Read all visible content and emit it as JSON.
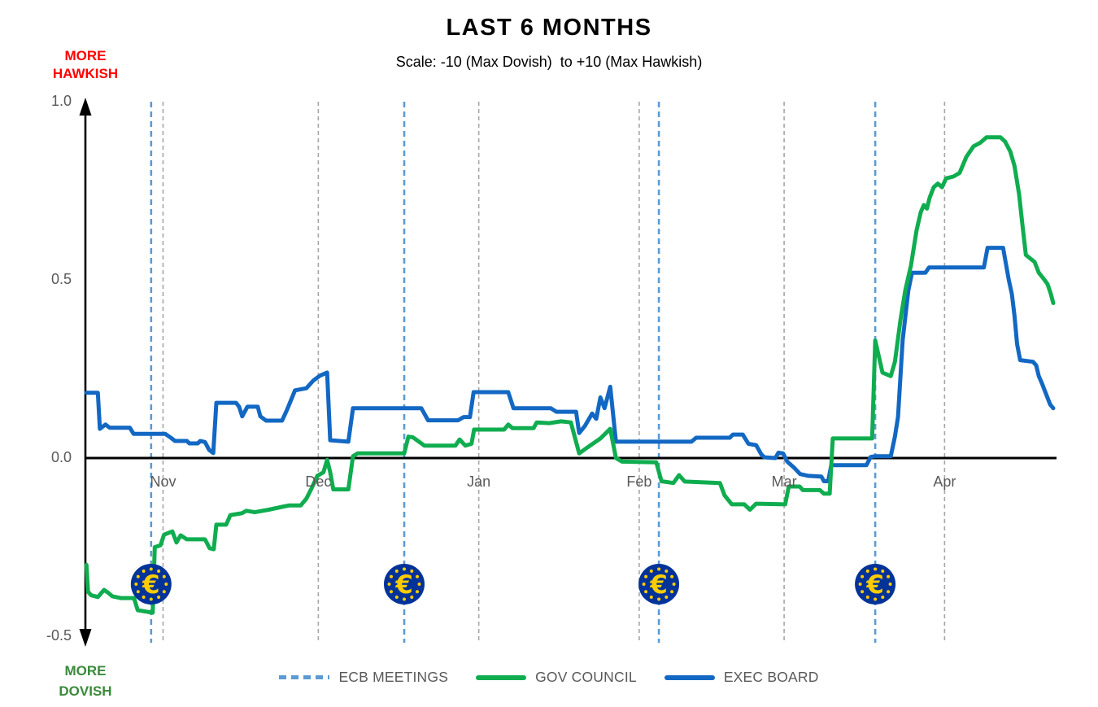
{
  "title": "LAST 6 MONTHS",
  "subtitle": "Scale: -10 (Max Dovish)  to +10 (Max Hawkish)",
  "axis_annotations": {
    "hawkish": [
      "MORE",
      "HAWKISH"
    ],
    "dovish": [
      "MORE",
      "DOVISH"
    ]
  },
  "colors": {
    "gov_council": "#0FAD4F",
    "exec_board": "#1268C3",
    "ecb_meetings": "#5B9BD5",
    "hawkish_text": "#FF0000",
    "dovish_text": "#3A8A3A",
    "zero_line": "#000000",
    "grid": "#A6A6A6",
    "tick_text": "#595959",
    "euro_coin_bg": "#003399",
    "euro_coin_fg": "#FFCC00"
  },
  "legend": [
    {
      "label": "ECB MEETINGS",
      "style": "dashed",
      "color_key": "ecb_meetings"
    },
    {
      "label": "GOV COUNCIL",
      "style": "solid",
      "color_key": "gov_council"
    },
    {
      "label": "EXEC BOARD",
      "style": "solid",
      "color_key": "exec_board"
    }
  ],
  "chart_data": {
    "type": "line",
    "title": "LAST 6 MONTHS",
    "x_unit": "days (day 0 = chart start, mid-October)",
    "x_range_days": 187,
    "ylim": [
      -0.5,
      1.0
    ],
    "grid": "vertical-dashed-at-month-starts",
    "legend_position": "bottom",
    "y_ticks": [
      {
        "label": "1.0",
        "value": 1.0
      },
      {
        "label": "0.5",
        "value": 0.5
      },
      {
        "label": "0.0",
        "value": 0.0
      },
      {
        "label": "-0.5",
        "value": -0.5
      }
    ],
    "months": [
      {
        "label": "Nov",
        "day": 15
      },
      {
        "label": "Dec",
        "day": 45
      },
      {
        "label": "Jan",
        "day": 76
      },
      {
        "label": "Feb",
        "day": 107
      },
      {
        "label": "Mar",
        "day": 135
      },
      {
        "label": "Apr",
        "day": 166
      }
    ],
    "ecb_meeting_days": [
      12.7,
      61.6,
      110.8,
      152.6
    ],
    "series": [
      {
        "name": "EXEC BOARD",
        "color_key": "exec_board",
        "points": [
          [
            0.2,
            0.183
          ],
          [
            2.4,
            0.183
          ],
          [
            2.8,
            0.082
          ],
          [
            3.9,
            0.094
          ],
          [
            4.7,
            0.085
          ],
          [
            8.6,
            0.085
          ],
          [
            9.3,
            0.068
          ],
          [
            15.4,
            0.068
          ],
          [
            16.5,
            0.057
          ],
          [
            17.3,
            0.048
          ],
          [
            19.6,
            0.048
          ],
          [
            20.1,
            0.041
          ],
          [
            21.7,
            0.041
          ],
          [
            22.2,
            0.048
          ],
          [
            23.1,
            0.045
          ],
          [
            23.9,
            0.023
          ],
          [
            24.7,
            0.014
          ],
          [
            25.3,
            0.155
          ],
          [
            29.1,
            0.155
          ],
          [
            29.7,
            0.144
          ],
          [
            30.3,
            0.117
          ],
          [
            31.3,
            0.144
          ],
          [
            33.3,
            0.144
          ],
          [
            33.8,
            0.117
          ],
          [
            34.9,
            0.105
          ],
          [
            38.0,
            0.105
          ],
          [
            39.0,
            0.137
          ],
          [
            40.5,
            0.19
          ],
          [
            42.7,
            0.196
          ],
          [
            44.0,
            0.217
          ],
          [
            45.3,
            0.231
          ],
          [
            46.7,
            0.24
          ],
          [
            47.3,
            0.05
          ],
          [
            50.8,
            0.046
          ],
          [
            51.7,
            0.14
          ],
          [
            64.9,
            0.14
          ],
          [
            66.2,
            0.106
          ],
          [
            72.0,
            0.106
          ],
          [
            73.1,
            0.115
          ],
          [
            74.3,
            0.115
          ],
          [
            75.0,
            0.185
          ],
          [
            81.7,
            0.185
          ],
          [
            82.7,
            0.14
          ],
          [
            89.9,
            0.14
          ],
          [
            91.0,
            0.13
          ],
          [
            94.8,
            0.13
          ],
          [
            95.4,
            0.07
          ],
          [
            96.5,
            0.09
          ],
          [
            97.9,
            0.125
          ],
          [
            98.7,
            0.11
          ],
          [
            99.5,
            0.17
          ],
          [
            100.3,
            0.14
          ],
          [
            101.4,
            0.2
          ],
          [
            102.5,
            0.046
          ],
          [
            117.1,
            0.046
          ],
          [
            118.0,
            0.057
          ],
          [
            124.5,
            0.057
          ],
          [
            125.1,
            0.066
          ],
          [
            127.0,
            0.066
          ],
          [
            128.1,
            0.04
          ],
          [
            129.6,
            0.036
          ],
          [
            130.6,
            0.01
          ],
          [
            131.2,
            0.002
          ],
          [
            133.3,
            0.0
          ],
          [
            133.9,
            0.015
          ],
          [
            134.8,
            0.013
          ],
          [
            135.6,
            -0.01
          ],
          [
            137.0,
            -0.028
          ],
          [
            138.1,
            -0.045
          ],
          [
            139.7,
            -0.05
          ],
          [
            142.2,
            -0.052
          ],
          [
            142.7,
            -0.065
          ],
          [
            143.5,
            -0.065
          ],
          [
            144.1,
            -0.02
          ],
          [
            150.9,
            -0.02
          ],
          [
            151.7,
            0.003
          ],
          [
            152.5,
            0.005
          ],
          [
            155.6,
            0.005
          ],
          [
            156.4,
            0.06
          ],
          [
            157.0,
            0.115
          ],
          [
            157.9,
            0.33
          ],
          [
            159.0,
            0.47
          ],
          [
            159.7,
            0.52
          ],
          [
            162.3,
            0.52
          ],
          [
            163.0,
            0.535
          ],
          [
            173.6,
            0.535
          ],
          [
            174.3,
            0.59
          ],
          [
            177.3,
            0.59
          ],
          [
            178.4,
            0.5
          ],
          [
            179.0,
            0.46
          ],
          [
            179.5,
            0.4
          ],
          [
            180.0,
            0.32
          ],
          [
            180.6,
            0.275
          ],
          [
            183.1,
            0.27
          ],
          [
            183.7,
            0.26
          ],
          [
            184.2,
            0.23
          ],
          [
            184.8,
            0.21
          ],
          [
            185.6,
            0.18
          ],
          [
            186.4,
            0.15
          ],
          [
            187.0,
            0.14
          ]
        ]
      },
      {
        "name": "GOV COUNCIL",
        "color_key": "gov_council",
        "points": [
          [
            0.2,
            -0.3
          ],
          [
            0.5,
            -0.375
          ],
          [
            1.1,
            -0.385
          ],
          [
            2.4,
            -0.39
          ],
          [
            3.6,
            -0.37
          ],
          [
            4.4,
            -0.378
          ],
          [
            5.2,
            -0.388
          ],
          [
            6.8,
            -0.393
          ],
          [
            9.4,
            -0.393
          ],
          [
            10.1,
            -0.427
          ],
          [
            11.8,
            -0.431
          ],
          [
            13.0,
            -0.434
          ],
          [
            13.4,
            -0.25
          ],
          [
            14.5,
            -0.245
          ],
          [
            15.2,
            -0.215
          ],
          [
            16.8,
            -0.206
          ],
          [
            17.6,
            -0.237
          ],
          [
            18.4,
            -0.217
          ],
          [
            19.6,
            -0.228
          ],
          [
            23.1,
            -0.228
          ],
          [
            24.0,
            -0.253
          ],
          [
            24.8,
            -0.256
          ],
          [
            25.3,
            -0.187
          ],
          [
            27.2,
            -0.187
          ],
          [
            28.0,
            -0.16
          ],
          [
            30.2,
            -0.155
          ],
          [
            31.1,
            -0.148
          ],
          [
            32.7,
            -0.152
          ],
          [
            35.4,
            -0.145
          ],
          [
            38.0,
            -0.137
          ],
          [
            39.3,
            -0.133
          ],
          [
            41.6,
            -0.133
          ],
          [
            42.7,
            -0.114
          ],
          [
            43.7,
            -0.085
          ],
          [
            44.8,
            -0.05
          ],
          [
            46.0,
            -0.04
          ],
          [
            46.7,
            -0.005
          ],
          [
            47.3,
            -0.04
          ],
          [
            47.9,
            -0.088
          ],
          [
            50.8,
            -0.088
          ],
          [
            51.7,
            0.005
          ],
          [
            52.6,
            0.013
          ],
          [
            61.6,
            0.013
          ],
          [
            62.4,
            0.06
          ],
          [
            63.3,
            0.058
          ],
          [
            65.5,
            0.035
          ],
          [
            71.5,
            0.035
          ],
          [
            72.3,
            0.052
          ],
          [
            73.4,
            0.035
          ],
          [
            74.6,
            0.04
          ],
          [
            75.1,
            0.08
          ],
          [
            80.9,
            0.08
          ],
          [
            81.7,
            0.094
          ],
          [
            82.5,
            0.084
          ],
          [
            86.6,
            0.084
          ],
          [
            87.2,
            0.1
          ],
          [
            89.6,
            0.098
          ],
          [
            91.9,
            0.103
          ],
          [
            93.8,
            0.1
          ],
          [
            95.4,
            0.013
          ],
          [
            97.0,
            0.03
          ],
          [
            99.5,
            0.055
          ],
          [
            101.4,
            0.082
          ],
          [
            102.5,
            0.0
          ],
          [
            103.7,
            -0.01
          ],
          [
            110.3,
            -0.012
          ],
          [
            111.3,
            -0.065
          ],
          [
            113.6,
            -0.07
          ],
          [
            114.7,
            -0.048
          ],
          [
            115.8,
            -0.066
          ],
          [
            122.6,
            -0.07
          ],
          [
            123.5,
            -0.105
          ],
          [
            124.9,
            -0.13
          ],
          [
            127.3,
            -0.13
          ],
          [
            128.4,
            -0.145
          ],
          [
            129.6,
            -0.128
          ],
          [
            135.2,
            -0.13
          ],
          [
            135.9,
            -0.08
          ],
          [
            138.0,
            -0.08
          ],
          [
            138.6,
            -0.09
          ],
          [
            141.9,
            -0.09
          ],
          [
            142.7,
            -0.1
          ],
          [
            143.8,
            -0.1
          ],
          [
            144.4,
            0.055
          ],
          [
            152.0,
            0.055
          ],
          [
            152.6,
            0.33
          ],
          [
            154.0,
            0.24
          ],
          [
            155.6,
            0.23
          ],
          [
            156.4,
            0.27
          ],
          [
            157.5,
            0.39
          ],
          [
            158.4,
            0.47
          ],
          [
            159.5,
            0.54
          ],
          [
            160.6,
            0.64
          ],
          [
            161.4,
            0.69
          ],
          [
            162.0,
            0.71
          ],
          [
            162.6,
            0.7
          ],
          [
            163.1,
            0.73
          ],
          [
            163.9,
            0.76
          ],
          [
            164.7,
            0.77
          ],
          [
            165.5,
            0.76
          ],
          [
            166.3,
            0.785
          ],
          [
            167.7,
            0.79
          ],
          [
            168.9,
            0.8
          ],
          [
            170.2,
            0.845
          ],
          [
            171.6,
            0.875
          ],
          [
            172.9,
            0.885
          ],
          [
            174.1,
            0.9
          ],
          [
            176.8,
            0.9
          ],
          [
            177.7,
            0.888
          ],
          [
            178.7,
            0.86
          ],
          [
            179.5,
            0.82
          ],
          [
            180.4,
            0.74
          ],
          [
            181.0,
            0.66
          ],
          [
            181.7,
            0.57
          ],
          [
            183.4,
            0.55
          ],
          [
            184.2,
            0.52
          ],
          [
            185.3,
            0.5
          ],
          [
            185.9,
            0.488
          ],
          [
            186.5,
            0.462
          ],
          [
            187.0,
            0.435
          ]
        ]
      }
    ]
  }
}
